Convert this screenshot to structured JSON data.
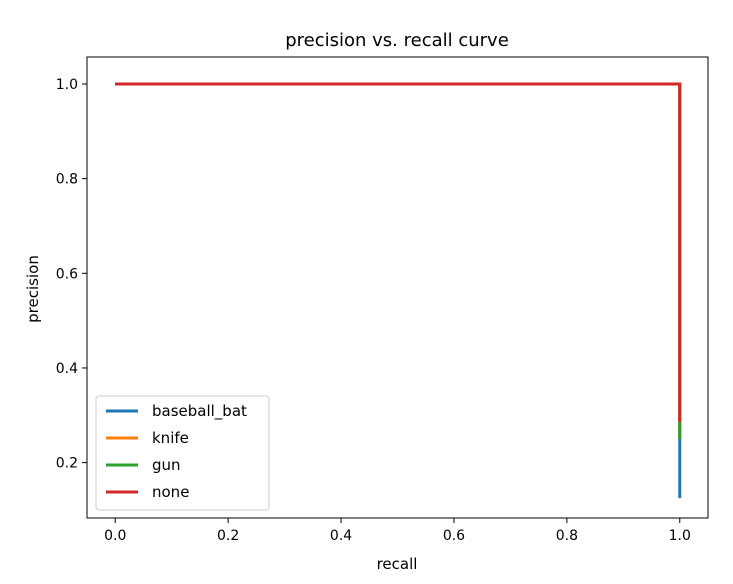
{
  "chart_data": {
    "type": "line",
    "title": "precision vs. recall curve",
    "xlabel": "recall",
    "ylabel": "precision",
    "xlim": [
      -0.05,
      1.05
    ],
    "ylim": [
      0.083,
      1.057
    ],
    "xticks": [
      0.0,
      0.2,
      0.4,
      0.6,
      0.8,
      1.0
    ],
    "xtick_labels": [
      "0.0",
      "0.2",
      "0.4",
      "0.6",
      "0.8",
      "1.0"
    ],
    "yticks": [
      0.2,
      0.4,
      0.6,
      0.8,
      1.0
    ],
    "ytick_labels": [
      "0.2",
      "0.4",
      "0.6",
      "0.8",
      "1.0"
    ],
    "grid": false,
    "legend_position": "lower-left",
    "series": [
      {
        "name": "baseball_bat",
        "color": "#1f77b4",
        "x": [
          0.0,
          1.0,
          1.0
        ],
        "y": [
          1.0,
          1.0,
          0.125
        ]
      },
      {
        "name": "knife",
        "color": "#ff7f0e",
        "x": [
          0.0,
          1.0,
          1.0
        ],
        "y": [
          1.0,
          1.0,
          0.25
        ]
      },
      {
        "name": "gun",
        "color": "#2ca02c",
        "x": [
          0.0,
          1.0,
          1.0
        ],
        "y": [
          1.0,
          1.0,
          0.25
        ]
      },
      {
        "name": "none",
        "color": "#d62728",
        "x": [
          0.0,
          1.0,
          1.0
        ],
        "y": [
          1.0,
          1.0,
          0.286
        ]
      }
    ]
  }
}
